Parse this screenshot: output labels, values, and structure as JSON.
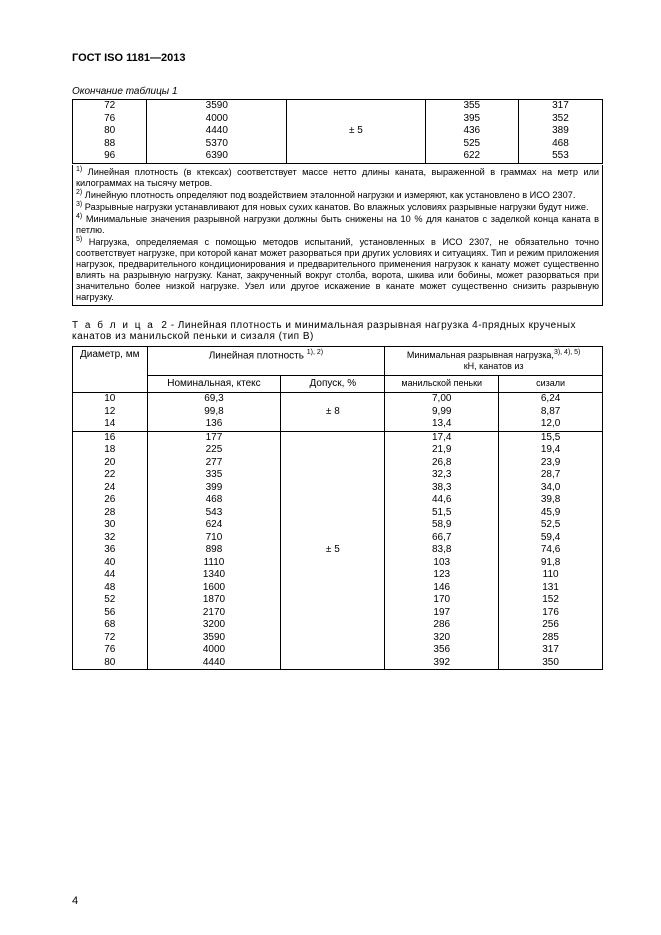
{
  "header": "ГОСТ ISO 1181—2013",
  "table1": {
    "caption": "Окончание таблицы 1",
    "tolerance": "± 5",
    "rows": [
      {
        "d": "72",
        "ld": "3590",
        "m": "355",
        "s": "317"
      },
      {
        "d": "76",
        "ld": "4000",
        "m": "395",
        "s": "352"
      },
      {
        "d": "80",
        "ld": "4440",
        "m": "436",
        "s": "389"
      },
      {
        "d": "88",
        "ld": "5370",
        "m": "525",
        "s": "468"
      },
      {
        "d": "96",
        "ld": "6390",
        "m": "622",
        "s": "553"
      }
    ],
    "notes": [
      "Линейная плотность (в ктексах) соответствует массе нетто длины каната, выраженной в граммах на метр или килограммах на тысячу метров.",
      "Линейную плотность определяют под воздействием эталонной нагрузки и измеряют, как установлено в ИСО 2307.",
      "Разрывные нагрузки устанавливают для новых сухих канатов. Во влажных условиях разрывные нагрузки будут ниже.",
      "Минимальные значения разрывной нагрузки должны быть снижены на 10 % для канатов с заделкой конца каната в петлю.",
      "Нагрузка, определяемая с помощью методов испытаний, установленных в ИСО 2307, не обязательно точно соответствует нагрузке, при которой канат может разорваться при других условиях и ситуациях. Тип и режим приложения нагрузок, предварительного кондиционирования и предварительного применения нагрузок к канату может существенно влиять на разрывную нагрузку. Канат, закрученный вокруг столба, ворота, шкива или бобины, может разорваться при значительно более низкой нагрузке. Узел или другое искажение в канате может существенно снизить разрывную нагрузку."
    ]
  },
  "table2": {
    "title_prefix": "Т а б л и ц а",
    "title_num": "2",
    "title_rest": "- Линейная плотность и минимальная разрывная нагрузка 4-прядных крученых канатов из манильской пеньки и сизаля (тип В)",
    "h_diam": "Диаметр, мм",
    "h_ld": "Линейная плотность",
    "h_ld_sup": "1), 2)",
    "h_nom": "Номинальная, ктекс",
    "h_tol": "Допуск, %",
    "h_min": "Минимальная  разрывная  нагрузка,",
    "h_min_sup": "3), 4), 5)",
    "h_min2": "кН, канатов из",
    "h_man": "манильской пеньки",
    "h_sis": "сизали",
    "g1_tol": "± 8",
    "g2_tol": "± 5",
    "group1": [
      {
        "d": "10",
        "n": "69,3",
        "m": "7,00",
        "s": "6,24"
      },
      {
        "d": "12",
        "n": "99,8",
        "m": "9,99",
        "s": "8,87"
      },
      {
        "d": "14",
        "n": "136",
        "m": "13,4",
        "s": "12,0"
      }
    ],
    "group2": [
      {
        "d": "16",
        "n": "177",
        "m": "17,4",
        "s": "15,5"
      },
      {
        "d": "18",
        "n": "225",
        "m": "21,9",
        "s": "19,4"
      },
      {
        "d": "20",
        "n": "277",
        "m": "26,8",
        "s": "23,9"
      },
      {
        "d": "22",
        "n": "335",
        "m": "32,3",
        "s": "28,7"
      },
      {
        "d": "24",
        "n": "399",
        "m": "38,3",
        "s": "34,0"
      },
      {
        "d": "26",
        "n": "468",
        "m": "44,6",
        "s": "39,8"
      },
      {
        "d": "28",
        "n": "543",
        "m": "51,5",
        "s": "45,9"
      },
      {
        "d": "30",
        "n": "624",
        "m": "58,9",
        "s": "52,5"
      },
      {
        "d": "32",
        "n": "710",
        "m": "66,7",
        "s": "59,4"
      },
      {
        "d": "36",
        "n": "898",
        "m": "83,8",
        "s": "74,6"
      },
      {
        "d": "40",
        "n": "1110",
        "m": "103",
        "s": "91,8"
      },
      {
        "d": "44",
        "n": "1340",
        "m": "123",
        "s": "110"
      },
      {
        "d": "48",
        "n": "1600",
        "m": "146",
        "s": "131"
      },
      {
        "d": "52",
        "n": "1870",
        "m": "170",
        "s": "152"
      },
      {
        "d": "56",
        "n": "2170",
        "m": "197",
        "s": "176"
      },
      {
        "d": "68",
        "n": "3200",
        "m": "286",
        "s": "256"
      },
      {
        "d": "72",
        "n": "3590",
        "m": "320",
        "s": "285"
      },
      {
        "d": "76",
        "n": "4000",
        "m": "356",
        "s": "317"
      },
      {
        "d": "80",
        "n": "4440",
        "m": "392",
        "s": "350"
      }
    ]
  },
  "page_number": "4"
}
